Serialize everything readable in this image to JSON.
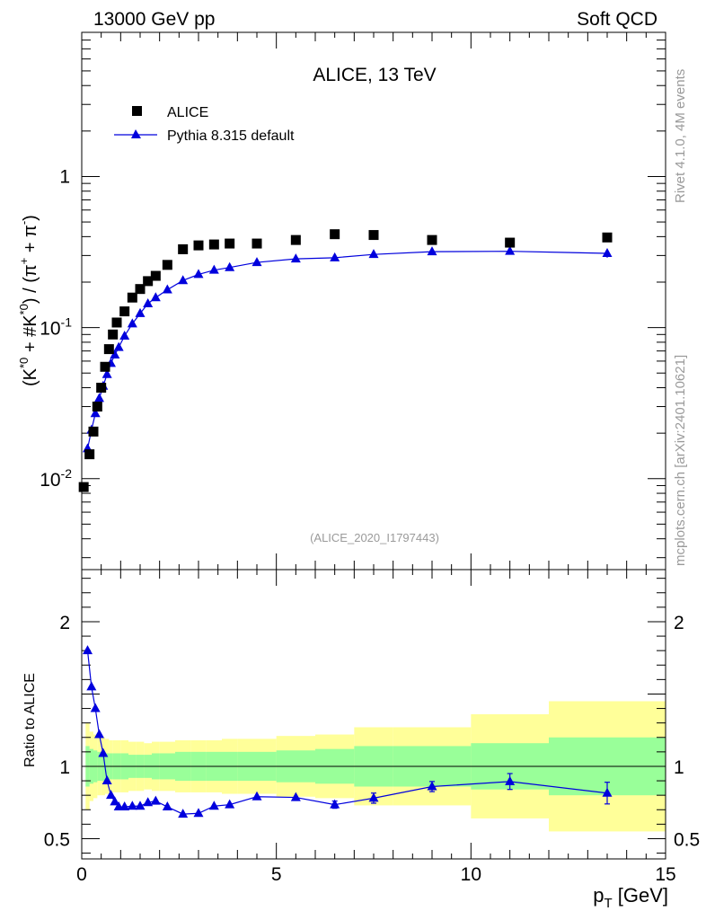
{
  "header": {
    "left": "13000 GeV pp",
    "right": "Soft QCD"
  },
  "side_labels": {
    "rivet": "Rivet 4.1.0,  4M events",
    "source": "mcplots.cern.ch [arXiv:2401.10621]"
  },
  "chart_data": {
    "type": "scatter",
    "title": "ALICE, 13 TeV",
    "analysis_tag": "(ALICE_2020_I1797443)",
    "xlabel": "p_T [GeV]",
    "ylabel": "(K*0 + #K*0) / (π+ + π-)",
    "ratio_ylabel": "Ratio to ALICE",
    "x_range": [
      0,
      15
    ],
    "y_range": [
      0.0025,
      9
    ],
    "ratio_range": [
      0.36,
      2.36
    ],
    "x_ticks": [
      "0",
      "5",
      "10",
      "15"
    ],
    "y_ticks": [
      "10^-2",
      "10^-1",
      "1"
    ],
    "ratio_ticks": [
      "0.5",
      "1",
      "2"
    ],
    "legend": [
      "ALICE",
      "Pythia 8.315 default"
    ],
    "data": {
      "name": "ALICE",
      "x": [
        0.05,
        0.2,
        0.3,
        0.4,
        0.5,
        0.6,
        0.7,
        0.8,
        0.9,
        1.1,
        1.3,
        1.5,
        1.7,
        1.9,
        2.2,
        2.6,
        3.0,
        3.4,
        3.8,
        4.5,
        5.5,
        6.5,
        7.5,
        9.0,
        11.0,
        13.5
      ],
      "y": [
        0.0088,
        0.0145,
        0.0205,
        0.03,
        0.04,
        0.055,
        0.072,
        0.09,
        0.108,
        0.128,
        0.158,
        0.18,
        0.203,
        0.22,
        0.26,
        0.33,
        0.35,
        0.355,
        0.36,
        0.36,
        0.38,
        0.415,
        0.41,
        0.38,
        0.365,
        0.395
      ]
    },
    "mc": {
      "name": "Pythia 8.315 default",
      "color": "#0000dd",
      "x": [
        0.15,
        0.25,
        0.35,
        0.45,
        0.55,
        0.65,
        0.75,
        0.85,
        0.95,
        1.1,
        1.3,
        1.5,
        1.7,
        1.9,
        2.2,
        2.6,
        3.0,
        3.4,
        3.8,
        4.5,
        5.5,
        6.5,
        7.5,
        9.0,
        11.0,
        13.5
      ],
      "y": [
        0.0158,
        0.021,
        0.027,
        0.034,
        0.041,
        0.049,
        0.058,
        0.066,
        0.074,
        0.088,
        0.106,
        0.124,
        0.144,
        0.158,
        0.178,
        0.205,
        0.225,
        0.24,
        0.25,
        0.27,
        0.285,
        0.29,
        0.305,
        0.318,
        0.32,
        0.31
      ],
      "y_err": [
        0,
        0,
        0,
        0,
        0,
        0,
        0,
        0,
        0,
        0,
        0,
        0,
        0,
        0,
        0,
        0,
        0,
        0,
        0,
        0,
        0,
        0,
        0,
        0.007,
        0.012,
        0.02
      ]
    },
    "ratio": {
      "x": [
        0.15,
        0.25,
        0.35,
        0.45,
        0.55,
        0.65,
        0.75,
        0.85,
        0.95,
        1.1,
        1.3,
        1.5,
        1.7,
        1.9,
        2.2,
        2.6,
        3.0,
        3.4,
        3.8,
        4.5,
        5.5,
        6.5,
        7.5,
        9.0,
        11.0,
        13.5
      ],
      "y": [
        1.8,
        1.55,
        1.4,
        1.22,
        1.09,
        0.9,
        0.8,
        0.755,
        0.72,
        0.72,
        0.725,
        0.725,
        0.75,
        0.76,
        0.72,
        0.67,
        0.675,
        0.725,
        0.735,
        0.79,
        0.785,
        0.735,
        0.78,
        0.86,
        0.895,
        0.815
      ],
      "y_err": [
        0,
        0,
        0,
        0,
        0,
        0,
        0,
        0,
        0,
        0,
        0,
        0,
        0,
        0,
        0,
        0,
        0,
        0,
        0,
        0,
        0,
        0.025,
        0.035,
        0.035,
        0.055,
        0.075
      ]
    },
    "uncertainty_bands": {
      "edges": [
        0.1,
        0.2,
        0.3,
        0.4,
        0.5,
        0.6,
        0.7,
        0.8,
        0.9,
        1.0,
        1.2,
        1.4,
        1.6,
        1.8,
        2.0,
        2.4,
        2.8,
        3.2,
        3.6,
        4.0,
        5.0,
        6.0,
        7.0,
        8.0,
        10.0,
        12.0,
        15.0
      ],
      "stat_low": [
        0.86,
        0.88,
        0.89,
        0.9,
        0.9,
        0.91,
        0.91,
        0.91,
        0.91,
        0.91,
        0.92,
        0.92,
        0.92,
        0.91,
        0.91,
        0.9,
        0.9,
        0.9,
        0.9,
        0.9,
        0.89,
        0.88,
        0.86,
        0.86,
        0.84,
        0.8
      ],
      "stat_high": [
        1.14,
        1.12,
        1.11,
        1.1,
        1.1,
        1.09,
        1.09,
        1.09,
        1.09,
        1.09,
        1.08,
        1.08,
        1.08,
        1.09,
        1.09,
        1.1,
        1.1,
        1.1,
        1.1,
        1.1,
        1.11,
        1.12,
        1.14,
        1.14,
        1.16,
        1.2
      ],
      "tot_low": [
        0.7,
        0.76,
        0.78,
        0.8,
        0.8,
        0.81,
        0.82,
        0.82,
        0.82,
        0.82,
        0.83,
        0.83,
        0.84,
        0.83,
        0.83,
        0.82,
        0.82,
        0.82,
        0.81,
        0.81,
        0.79,
        0.78,
        0.73,
        0.73,
        0.64,
        0.55
      ],
      "tot_high": [
        1.3,
        1.24,
        1.22,
        1.2,
        1.2,
        1.19,
        1.18,
        1.18,
        1.18,
        1.18,
        1.17,
        1.17,
        1.16,
        1.17,
        1.17,
        1.18,
        1.18,
        1.18,
        1.19,
        1.19,
        1.21,
        1.22,
        1.27,
        1.27,
        1.36,
        1.45
      ],
      "stat_color": "#99ff99",
      "tot_color": "#ffff99"
    }
  }
}
